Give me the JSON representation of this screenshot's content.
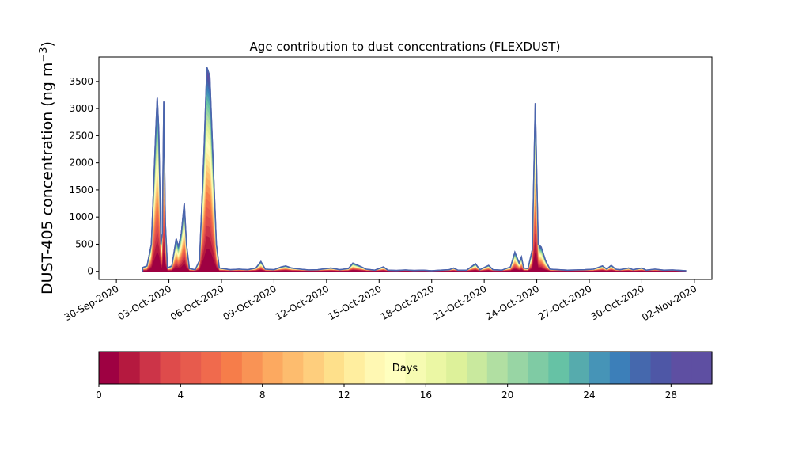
{
  "chart_data": {
    "type": "area",
    "title": "Age contribution to dust concentrations (FLEXDUST)",
    "ylabel_main": "DUST-405 concentration (ng m",
    "ylabel_sup": "−3",
    "ylabel_close": ")",
    "xlabel": "",
    "ylim": [
      -150,
      3950
    ],
    "yticks": [
      0,
      500,
      1000,
      1500,
      2000,
      2500,
      3000,
      3500
    ],
    "x_axis": {
      "start": "2020-09-29",
      "end": "2020-11-03",
      "tick_dates": [
        "2020-09-30",
        "2020-10-03",
        "2020-10-06",
        "2020-10-09",
        "2020-10-12",
        "2020-10-15",
        "2020-10-18",
        "2020-10-21",
        "2020-10-24",
        "2020-10-27",
        "2020-10-30",
        "2020-11-02"
      ],
      "tick_labels": [
        "30-Sep-2020",
        "03-Oct-2020",
        "06-Oct-2020",
        "09-Oct-2020",
        "12-Oct-2020",
        "15-Oct-2020",
        "18-Oct-2020",
        "21-Oct-2020",
        "24-Oct-2020",
        "27-Oct-2020",
        "30-Oct-2020",
        "02-Nov-2020"
      ]
    },
    "series": [
      {
        "description": "total concentration (outer envelope)",
        "points": [
          [
            "2020-10-01T12:00",
            0
          ],
          [
            "2020-10-01T12:00",
            70
          ],
          [
            "2020-10-01T18:00",
            100
          ],
          [
            "2020-10-02T00:00",
            500
          ],
          [
            "2020-10-02T06:00",
            2600
          ],
          [
            "2020-10-02T08:00",
            3200
          ],
          [
            "2020-10-02T10:00",
            2600
          ],
          [
            "2020-10-02T13:00",
            500
          ],
          [
            "2020-10-02T15:00",
            700
          ],
          [
            "2020-10-02T17:00",
            3130
          ],
          [
            "2020-10-02T19:00",
            900
          ],
          [
            "2020-10-02T22:00",
            60
          ],
          [
            "2020-10-03T04:00",
            100
          ],
          [
            "2020-10-03T10:00",
            600
          ],
          [
            "2020-10-03T13:00",
            450
          ],
          [
            "2020-10-03T17:00",
            700
          ],
          [
            "2020-10-03T21:00",
            1250
          ],
          [
            "2020-10-04T00:00",
            500
          ],
          [
            "2020-10-04T04:00",
            50
          ],
          [
            "2020-10-04T12:00",
            30
          ],
          [
            "2020-10-04T18:00",
            200
          ],
          [
            "2020-10-05T00:00",
            2200
          ],
          [
            "2020-10-05T04:00",
            3760
          ],
          [
            "2020-10-05T08:00",
            3600
          ],
          [
            "2020-10-05T12:00",
            2200
          ],
          [
            "2020-10-05T17:00",
            500
          ],
          [
            "2020-10-05T21:00",
            60
          ],
          [
            "2020-10-06T12:00",
            30
          ],
          [
            "2020-10-07T00:00",
            40
          ],
          [
            "2020-10-07T12:00",
            30
          ],
          [
            "2020-10-07T23:00",
            60
          ],
          [
            "2020-10-08T06:00",
            180
          ],
          [
            "2020-10-08T12:00",
            40
          ],
          [
            "2020-10-09T00:00",
            30
          ],
          [
            "2020-10-09T10:00",
            80
          ],
          [
            "2020-10-09T16:00",
            100
          ],
          [
            "2020-10-10T00:00",
            60
          ],
          [
            "2020-10-10T12:00",
            40
          ],
          [
            "2020-10-11T00:00",
            25
          ],
          [
            "2020-10-11T12:00",
            30
          ],
          [
            "2020-10-12T06:00",
            60
          ],
          [
            "2020-10-12T18:00",
            30
          ],
          [
            "2020-10-13T06:00",
            50
          ],
          [
            "2020-10-13T12:00",
            150
          ],
          [
            "2020-10-14T00:00",
            80
          ],
          [
            "2020-10-14T06:00",
            40
          ],
          [
            "2020-10-14T18:00",
            20
          ],
          [
            "2020-10-15T06:00",
            80
          ],
          [
            "2020-10-15T12:00",
            20
          ],
          [
            "2020-10-16T00:00",
            15
          ],
          [
            "2020-10-16T12:00",
            25
          ],
          [
            "2020-10-17T00:00",
            15
          ],
          [
            "2020-10-17T12:00",
            20
          ],
          [
            "2020-10-18T00:00",
            10
          ],
          [
            "2020-10-18T12:00",
            20
          ],
          [
            "2020-10-19T00:00",
            30
          ],
          [
            "2020-10-19T06:00",
            60
          ],
          [
            "2020-10-19T12:00",
            20
          ],
          [
            "2020-10-20T00:00",
            20
          ],
          [
            "2020-10-20T12:00",
            140
          ],
          [
            "2020-10-20T18:00",
            30
          ],
          [
            "2020-10-21T06:00",
            110
          ],
          [
            "2020-10-21T12:00",
            30
          ],
          [
            "2020-10-22T00:00",
            20
          ],
          [
            "2020-10-22T12:00",
            80
          ],
          [
            "2020-10-22T18:00",
            350
          ],
          [
            "2020-10-23T00:00",
            150
          ],
          [
            "2020-10-23T03:00",
            260
          ],
          [
            "2020-10-23T06:00",
            60
          ],
          [
            "2020-10-23T12:00",
            50
          ],
          [
            "2020-10-23T18:00",
            400
          ],
          [
            "2020-10-23T22:00",
            3100
          ],
          [
            "2020-10-24T00:00",
            1700
          ],
          [
            "2020-10-24T02:00",
            500
          ],
          [
            "2020-10-24T06:00",
            450
          ],
          [
            "2020-10-24T12:00",
            200
          ],
          [
            "2020-10-24T18:00",
            40
          ],
          [
            "2020-10-25T06:00",
            30
          ],
          [
            "2020-10-25T18:00",
            20
          ],
          [
            "2020-10-26T06:00",
            25
          ],
          [
            "2020-10-26T18:00",
            30
          ],
          [
            "2020-10-27T06:00",
            40
          ],
          [
            "2020-10-27T18:00",
            100
          ],
          [
            "2020-10-28T00:00",
            40
          ],
          [
            "2020-10-28T06:00",
            110
          ],
          [
            "2020-10-28T12:00",
            40
          ],
          [
            "2020-10-28T18:00",
            30
          ],
          [
            "2020-10-29T06:00",
            60
          ],
          [
            "2020-10-29T12:00",
            30
          ],
          [
            "2020-10-30T00:00",
            60
          ],
          [
            "2020-10-30T06:00",
            20
          ],
          [
            "2020-10-30T18:00",
            40
          ],
          [
            "2020-10-31T06:00",
            20
          ],
          [
            "2020-10-31T18:00",
            25
          ],
          [
            "2020-11-01T06:00",
            15
          ],
          [
            "2020-11-01T12:00",
            10
          ],
          [
            "2020-11-01T12:00",
            0
          ]
        ]
      }
    ],
    "colorbar": {
      "label": "Days",
      "range": [
        0,
        30
      ],
      "ticks": [
        0,
        4,
        8,
        12,
        16,
        20,
        24,
        28
      ],
      "colors": [
        "#9e0142",
        "#b5193f",
        "#cc3448",
        "#de4b4b",
        "#e75b4d",
        "#f06a4d",
        "#f67d4a",
        "#f99355",
        "#fca960",
        "#fdbc6e",
        "#fece7d",
        "#fee08b",
        "#ffee9f",
        "#fff8b3",
        "#ffffbf",
        "#f6fbb2",
        "#ebf7a4",
        "#ddf19a",
        "#c9e99e",
        "#b1dfa2",
        "#98d5a4",
        "#7fcba4",
        "#66c2a5",
        "#56abad",
        "#4694b7",
        "#3c7fb9",
        "#4568ad",
        "#4e57a6",
        "#5e4fa2",
        "#5e4fa2"
      ]
    }
  }
}
